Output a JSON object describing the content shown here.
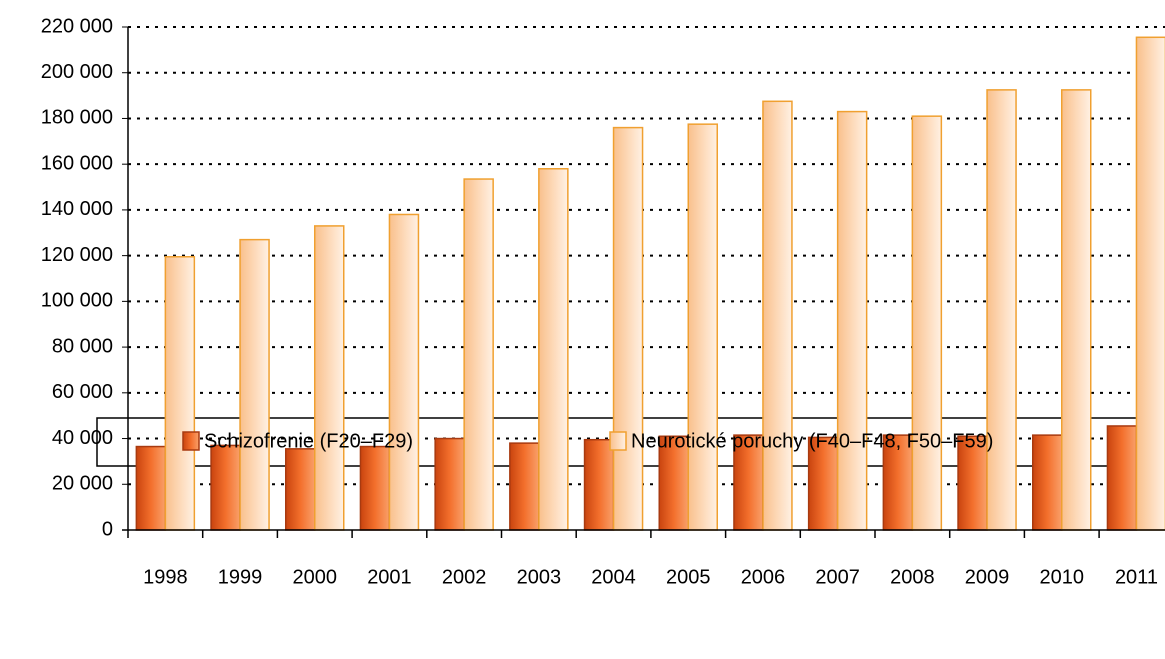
{
  "chart_data": {
    "type": "bar",
    "categories": [
      "1998",
      "1999",
      "2000",
      "2001",
      "2002",
      "2003",
      "2004",
      "2005",
      "2006",
      "2007",
      "2008",
      "2009",
      "2010",
      "2011"
    ],
    "series": [
      {
        "name": "Schizofrenie (F20–F29)",
        "color": "#e8662a",
        "values": [
          36500,
          37000,
          35500,
          36500,
          40000,
          38000,
          39500,
          41000,
          41500,
          40500,
          41500,
          41000,
          41500,
          45500
        ]
      },
      {
        "name": "Neurotické poruchy (F40–F48, F50–F59)",
        "color": "#fcd5b0",
        "values": [
          119500,
          127000,
          133000,
          138000,
          153500,
          158000,
          176000,
          177500,
          187500,
          183000,
          181000,
          192500,
          192500,
          215500
        ]
      }
    ],
    "ylim": [
      0,
      220000
    ],
    "yticks": [
      {
        "value": 0,
        "label": "0"
      },
      {
        "value": 20000,
        "label": "20 000"
      },
      {
        "value": 40000,
        "label": "40 000"
      },
      {
        "value": 60000,
        "label": "60 000"
      },
      {
        "value": 80000,
        "label": "80 000"
      },
      {
        "value": 100000,
        "label": "100 000"
      },
      {
        "value": 120000,
        "label": "120 000"
      },
      {
        "value": 140000,
        "label": "140 000"
      },
      {
        "value": 160000,
        "label": "160 000"
      },
      {
        "value": 180000,
        "label": "180 000"
      },
      {
        "value": 200000,
        "label": "200 000"
      },
      {
        "value": 220000,
        "label": "220 000"
      }
    ],
    "grid": true
  }
}
